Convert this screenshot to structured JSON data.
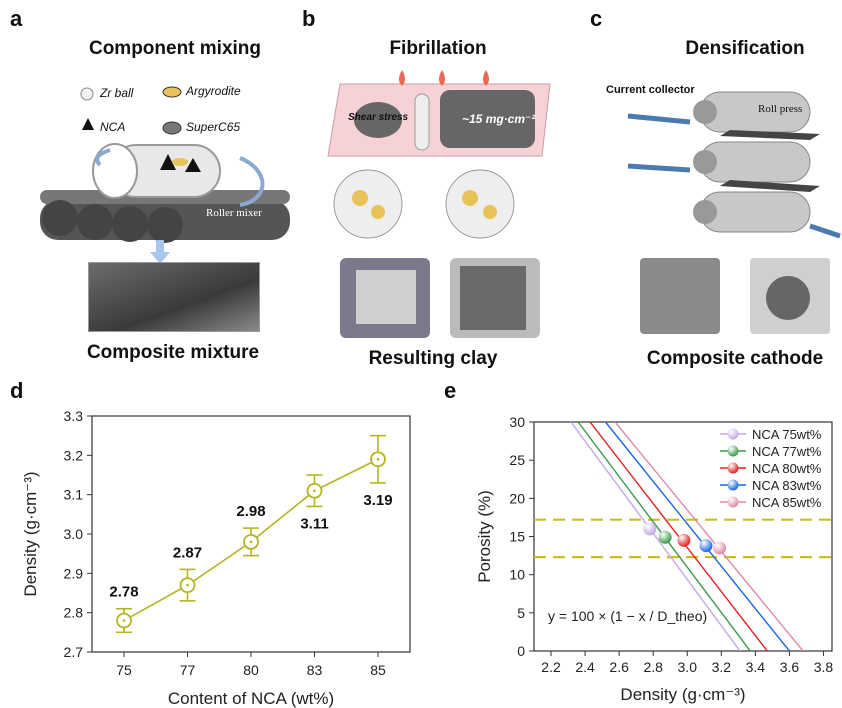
{
  "panels": {
    "a": {
      "letter": "a",
      "title": "Component mixing",
      "caption": "Composite mixture",
      "legend": [
        "Zr ball",
        "Argyrodite",
        "NCA",
        "SuperC65"
      ],
      "machine": "Roller mixer"
    },
    "b": {
      "letter": "b",
      "title": "Fibrillation",
      "caption": "Resulting clay",
      "shear": "Shear stress",
      "loading": "~15 mg·cm⁻²"
    },
    "c": {
      "letter": "c",
      "title": "Densification",
      "caption": "Composite cathode",
      "collector": "Current collector",
      "press": "Roll press"
    },
    "d": {
      "letter": "d"
    },
    "e": {
      "letter": "e"
    }
  },
  "colors": {
    "d_series": "#b5b520",
    "guide": "#c8c020"
  },
  "chart_data": [
    {
      "type": "line",
      "xlabel": "Content of NCA (wt%)",
      "ylabel": "Density (g·cm⁻³)",
      "categories": [
        "75",
        "77",
        "80",
        "83",
        "85"
      ],
      "values": [
        2.78,
        2.87,
        2.98,
        3.11,
        3.19
      ],
      "errors": [
        0.03,
        0.04,
        0.035,
        0.04,
        0.06
      ],
      "data_labels": [
        "2.78",
        "2.87",
        "2.98",
        "3.11",
        "3.19"
      ],
      "ylim": [
        2.7,
        3.3
      ],
      "yticks": [
        "2.7",
        "2.8",
        "2.9",
        "3.0",
        "3.1",
        "3.2",
        "3.3"
      ]
    },
    {
      "type": "line",
      "xlabel": "Density (g·cm⁻³)",
      "ylabel": "Porosity (%)",
      "xlim": [
        2.1,
        3.85
      ],
      "ylim": [
        0,
        30
      ],
      "xticks": [
        "2.2",
        "2.4",
        "2.6",
        "2.8",
        "3.0",
        "3.2",
        "3.4",
        "3.6",
        "3.8"
      ],
      "yticks": [
        "0",
        "5",
        "10",
        "15",
        "20",
        "25",
        "30"
      ],
      "legend_position": "top-right",
      "equation": "y = 100 × (1 − x / D_theo)",
      "guide_lines_y": [
        12.3,
        17.2
      ],
      "series": [
        {
          "name": "NCA 75wt%",
          "color": "#c3a8e8",
          "d_theo": 3.31,
          "point": [
            2.78,
            16.0
          ]
        },
        {
          "name": "NCA 77wt%",
          "color": "#3a9a4a",
          "d_theo": 3.37,
          "point": [
            2.87,
            14.9
          ]
        },
        {
          "name": "NCA 80wt%",
          "color": "#e02020",
          "d_theo": 3.47,
          "point": [
            2.98,
            14.5
          ]
        },
        {
          "name": "NCA 83wt%",
          "color": "#1a66e0",
          "d_theo": 3.6,
          "point": [
            3.11,
            13.8
          ]
        },
        {
          "name": "NCA 85wt%",
          "color": "#e08aa8",
          "d_theo": 3.68,
          "point": [
            3.19,
            13.5
          ]
        }
      ]
    }
  ]
}
